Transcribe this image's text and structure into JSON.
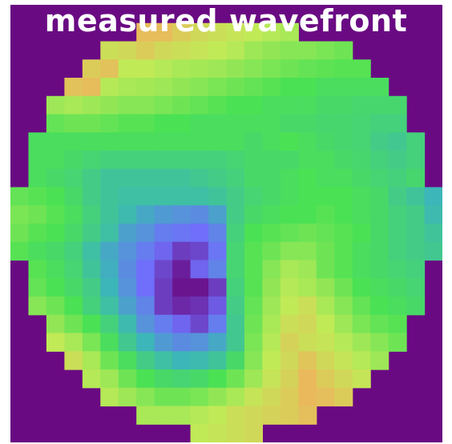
{
  "title": "measured wavefront",
  "colors": {
    "background": "#6a0a83",
    "colormap": [
      "#6a0a83",
      "#6f6ffb",
      "#3cb6b8",
      "#4be154",
      "#c1ea57",
      "#f4ad5c"
    ]
  },
  "grid": {
    "rows": 24,
    "cols": 24,
    "outside_value": -1,
    "values": [
      [
        -1,
        -1,
        -1,
        -1,
        -1,
        -1,
        -1,
        -1,
        -1,
        -1,
        -1,
        -1,
        -1,
        -1,
        -1,
        -1,
        -1,
        -1,
        -1,
        -1,
        -1,
        -1,
        -1,
        -1
      ],
      [
        -1,
        -1,
        -1,
        -1,
        -1,
        -1,
        -1,
        0.95,
        0.95,
        0.9,
        0.86,
        0.84,
        0.82,
        0.8,
        0.78,
        0.76,
        -1,
        -1,
        -1,
        -1,
        -1,
        -1,
        -1,
        -1
      ],
      [
        -1,
        -1,
        -1,
        -1,
        -1,
        0.84,
        0.86,
        0.9,
        0.86,
        0.84,
        0.82,
        0.8,
        0.78,
        0.74,
        0.72,
        0.7,
        0.7,
        0.68,
        0.66,
        -1,
        -1,
        -1,
        -1,
        -1
      ],
      [
        -1,
        -1,
        -1,
        -1,
        0.9,
        0.93,
        0.8,
        0.8,
        0.78,
        0.76,
        0.75,
        0.74,
        0.72,
        0.7,
        0.68,
        0.66,
        0.64,
        0.63,
        0.62,
        0.62,
        -1,
        -1,
        -1,
        -1
      ],
      [
        -1,
        -1,
        -1,
        0.93,
        0.95,
        0.78,
        0.76,
        0.75,
        0.74,
        0.72,
        0.7,
        0.68,
        0.66,
        0.64,
        0.62,
        0.6,
        0.6,
        0.58,
        0.58,
        0.58,
        0.58,
        -1,
        -1,
        -1
      ],
      [
        -1,
        -1,
        0.74,
        0.76,
        0.74,
        0.72,
        0.7,
        0.7,
        0.68,
        0.66,
        0.64,
        0.62,
        0.6,
        0.6,
        0.58,
        0.58,
        0.58,
        0.56,
        0.56,
        0.55,
        0.55,
        0.55,
        -1,
        -1
      ],
      [
        -1,
        -1,
        0.64,
        0.66,
        0.66,
        0.64,
        0.62,
        0.62,
        0.6,
        0.6,
        0.58,
        0.58,
        0.58,
        0.58,
        0.58,
        0.56,
        0.56,
        0.55,
        0.55,
        0.54,
        0.52,
        0.52,
        -1,
        -1
      ],
      [
        -1,
        0.58,
        0.58,
        0.58,
        0.58,
        0.58,
        0.58,
        0.58,
        0.58,
        0.58,
        0.58,
        0.58,
        0.58,
        0.56,
        0.58,
        0.6,
        0.58,
        0.56,
        0.55,
        0.54,
        0.5,
        0.48,
        0.52,
        -1
      ],
      [
        -1,
        0.58,
        0.58,
        0.56,
        0.54,
        0.52,
        0.52,
        0.52,
        0.52,
        0.52,
        0.52,
        0.52,
        0.54,
        0.56,
        0.56,
        0.56,
        0.58,
        0.58,
        0.56,
        0.55,
        0.52,
        0.5,
        0.52,
        -1
      ],
      [
        -1,
        0.58,
        0.56,
        0.54,
        0.5,
        0.46,
        0.46,
        0.46,
        0.46,
        0.46,
        0.48,
        0.5,
        0.52,
        0.56,
        0.56,
        0.58,
        0.6,
        0.58,
        0.58,
        0.56,
        0.54,
        0.52,
        0.55,
        -1
      ],
      [
        0.64,
        0.62,
        0.6,
        0.56,
        0.5,
        0.46,
        0.44,
        0.44,
        0.44,
        0.44,
        0.44,
        0.46,
        0.5,
        0.54,
        0.56,
        0.58,
        0.6,
        0.6,
        0.6,
        0.58,
        0.56,
        0.5,
        0.46,
        0.4
      ],
      [
        0.68,
        0.66,
        0.62,
        0.58,
        0.52,
        0.46,
        0.42,
        0.36,
        0.32,
        0.3,
        0.28,
        0.34,
        0.5,
        0.56,
        0.58,
        0.6,
        0.6,
        0.62,
        0.6,
        0.58,
        0.56,
        0.52,
        0.5,
        0.42
      ],
      [
        0.66,
        0.62,
        0.6,
        0.56,
        0.5,
        0.44,
        0.34,
        0.3,
        0.24,
        0.22,
        0.2,
        0.26,
        0.52,
        0.6,
        0.62,
        0.64,
        0.66,
        0.64,
        0.62,
        0.6,
        0.56,
        0.52,
        0.5,
        0.46
      ],
      [
        0.62,
        0.58,
        0.56,
        0.52,
        0.44,
        0.36,
        0.3,
        0.24,
        0.18,
        0.1,
        0.12,
        0.22,
        0.54,
        0.62,
        0.66,
        0.7,
        0.7,
        0.66,
        0.62,
        0.58,
        0.56,
        0.52,
        0.5,
        0.48
      ],
      [
        -1,
        0.62,
        0.58,
        0.54,
        0.46,
        0.38,
        0.28,
        0.2,
        0.12,
        0.04,
        0.18,
        0.26,
        0.54,
        0.62,
        0.7,
        0.76,
        0.74,
        0.66,
        0.62,
        0.58,
        0.56,
        0.54,
        0.52,
        -1
      ],
      [
        -1,
        0.64,
        0.6,
        0.56,
        0.5,
        0.4,
        0.3,
        0.2,
        0.1,
        0.02,
        0.02,
        0.1,
        0.52,
        0.62,
        0.72,
        0.78,
        0.76,
        0.72,
        0.66,
        0.6,
        0.58,
        0.56,
        0.54,
        -1
      ],
      [
        -1,
        0.7,
        0.66,
        0.6,
        0.52,
        0.44,
        0.34,
        0.26,
        0.1,
        0.06,
        0.08,
        0.16,
        0.5,
        0.64,
        0.74,
        0.8,
        0.84,
        0.76,
        0.7,
        0.64,
        0.6,
        0.58,
        0.56,
        -1
      ],
      [
        -1,
        -1,
        0.72,
        0.66,
        0.6,
        0.52,
        0.42,
        0.3,
        0.24,
        0.18,
        0.12,
        0.24,
        0.48,
        0.66,
        0.76,
        0.84,
        0.86,
        0.8,
        0.74,
        0.68,
        0.64,
        0.62,
        -1,
        -1
      ],
      [
        -1,
        -1,
        0.8,
        0.76,
        0.68,
        0.58,
        0.48,
        0.4,
        0.32,
        0.28,
        0.3,
        0.36,
        0.48,
        0.68,
        0.78,
        0.88,
        0.84,
        0.82,
        0.78,
        0.74,
        0.7,
        0.66,
        -1,
        -1
      ],
      [
        -1,
        -1,
        -1,
        0.84,
        0.76,
        0.66,
        0.58,
        0.5,
        0.44,
        0.4,
        0.42,
        0.46,
        0.56,
        0.7,
        0.8,
        0.86,
        0.92,
        0.86,
        0.82,
        0.78,
        0.74,
        -1,
        -1,
        -1
      ],
      [
        -1,
        -1,
        -1,
        -1,
        0.78,
        0.74,
        0.66,
        0.6,
        0.56,
        0.54,
        0.56,
        0.6,
        0.66,
        0.74,
        0.82,
        0.88,
        0.96,
        0.9,
        0.86,
        0.82,
        -1,
        -1,
        -1,
        -1
      ],
      [
        -1,
        -1,
        -1,
        -1,
        -1,
        0.78,
        0.74,
        0.7,
        0.66,
        0.66,
        0.68,
        0.72,
        0.76,
        0.82,
        0.86,
        0.9,
        0.96,
        0.94,
        0.9,
        -1,
        -1,
        -1,
        -1,
        -1
      ],
      [
        -1,
        -1,
        -1,
        -1,
        -1,
        -1,
        -1,
        0.76,
        0.76,
        0.76,
        0.78,
        0.8,
        0.84,
        0.86,
        0.88,
        0.9,
        0.94,
        -1,
        -1,
        -1,
        -1,
        -1,
        -1,
        -1
      ],
      [
        -1,
        -1,
        -1,
        -1,
        -1,
        -1,
        -1,
        -1,
        -1,
        -1,
        0.8,
        0.82,
        0.84,
        0.86,
        -1,
        -1,
        -1,
        -1,
        -1,
        -1,
        -1,
        -1,
        -1,
        -1
      ]
    ]
  }
}
